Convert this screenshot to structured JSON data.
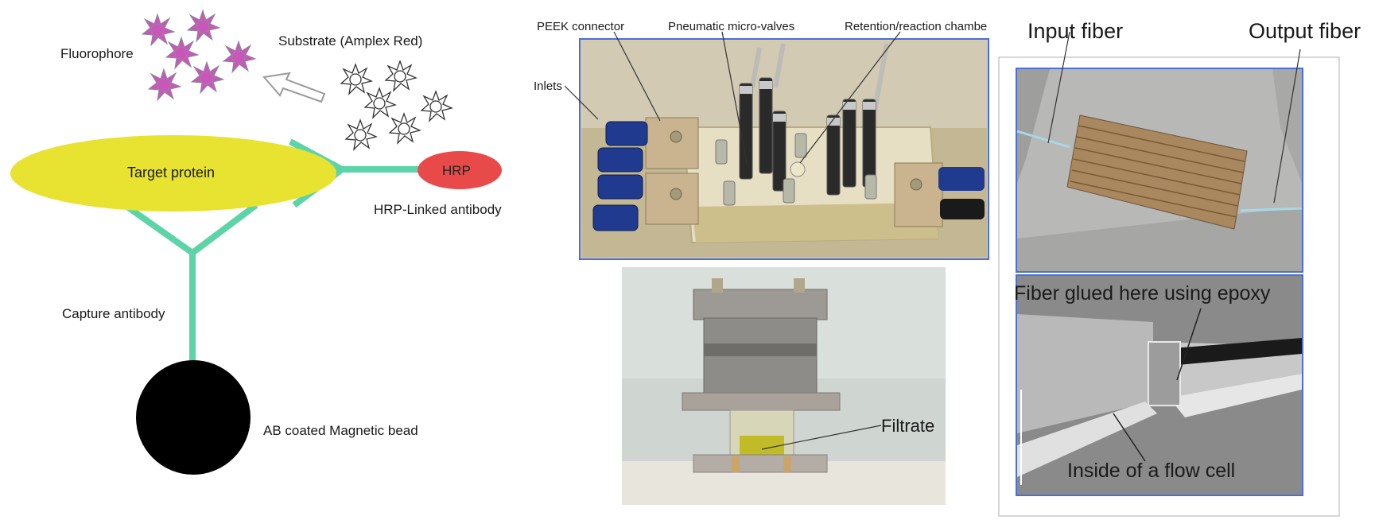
{
  "elisa": {
    "fluorophore": "Fluorophore",
    "substrate": "Substrate (Amplex Red)",
    "target_protein": "Target protein",
    "hrp": "HRP",
    "hrp_antibody": "HRP-Linked antibody",
    "capture_antibody": "Capture antibody",
    "bead": "AB coated Magnetic bead",
    "colors": {
      "fluorophore": "#cc55bb",
      "protein": "#e8e230",
      "antibody": "#5dd4a8",
      "hrp": "#e84a4a",
      "bead": "#000000"
    }
  },
  "chip": {
    "peek": "PEEK connector",
    "valves": "Pneumatic micro-valves",
    "chamber": "Retention/reaction chambe",
    "inlets": "Inlets"
  },
  "filter": {
    "filtrate": "Filtrate"
  },
  "flowcell": {
    "input": "Input fiber",
    "output": "Output fiber",
    "glued": "Fiber glued here using epoxy",
    "inside": "Inside of a flow cell"
  }
}
